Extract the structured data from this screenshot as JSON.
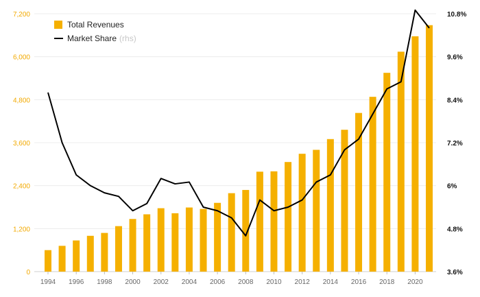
{
  "chart_data": {
    "type": "bar+line",
    "title": "",
    "xlabel": "",
    "ylabel": "",
    "years": [
      1994,
      1995,
      1996,
      1997,
      1998,
      1999,
      2000,
      2001,
      2002,
      2003,
      2004,
      2005,
      2006,
      2007,
      2008,
      2009,
      2010,
      2011,
      2012,
      2013,
      2014,
      2015,
      2016,
      2017,
      2018,
      2019,
      2020,
      2021
    ],
    "x_ticks": [
      "1994",
      "1996",
      "1998",
      "2000",
      "2002",
      "2004",
      "2006",
      "2008",
      "2010",
      "2012",
      "2014",
      "2016",
      "2018",
      "2020"
    ],
    "series": [
      {
        "name": "Total Revenues",
        "type": "bar",
        "axis": "left",
        "color": "#f5b000",
        "values": [
          600,
          720,
          870,
          1000,
          1080,
          1270,
          1470,
          1600,
          1770,
          1630,
          1790,
          1750,
          1920,
          2190,
          2280,
          2790,
          2800,
          3060,
          3290,
          3400,
          3700,
          3960,
          4430,
          4880,
          5550,
          6140,
          6570,
          6880
        ]
      },
      {
        "name": "Market Share",
        "name_suffix": "(rhs)",
        "type": "line",
        "axis": "right",
        "color": "#000000",
        "values": [
          8.6,
          7.2,
          6.3,
          6.0,
          5.8,
          5.7,
          5.3,
          5.5,
          6.2,
          6.05,
          6.1,
          5.4,
          5.3,
          5.1,
          4.6,
          5.6,
          5.3,
          5.4,
          5.6,
          6.1,
          6.3,
          7.0,
          7.3,
          8.0,
          8.7,
          8.9,
          10.9,
          10.4
        ]
      }
    ],
    "left_axis": {
      "ylim": [
        0,
        7200
      ],
      "ticks": [
        "0",
        "1,200",
        "2,400",
        "3,600",
        "4,800",
        "6,000",
        "7,200"
      ],
      "color": "#f2a900"
    },
    "right_axis": {
      "ylim": [
        3.6,
        10.8
      ],
      "ticks": [
        "3.6%",
        "4.8%",
        "6%",
        "7.2%",
        "8.4%",
        "9.6%",
        "10.8%"
      ],
      "color": "#111111"
    },
    "grid": true,
    "legend_position": "top-left"
  }
}
